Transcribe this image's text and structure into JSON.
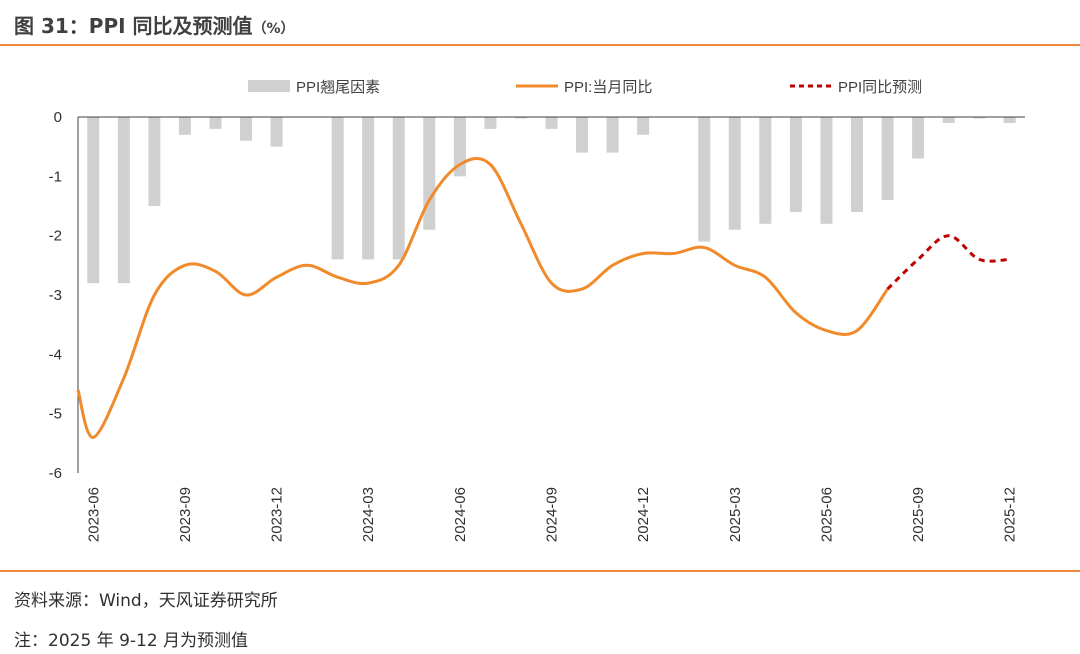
{
  "header": {
    "title": "图 31：PPI 同比及预测值",
    "unit": "（%）"
  },
  "footer": {
    "source": "资料来源：Wind，天风证券研究所",
    "note": "注：2025 年 9-12 月为预测值"
  },
  "colors": {
    "accent": "#f08a3c",
    "bar": "#d0d0d0",
    "line": "#f08a2a",
    "forecast": "#c00000"
  },
  "chart_data": {
    "type": "bar+line",
    "ylim": [
      -6,
      0
    ],
    "yticks": [
      "0",
      "-1",
      "-2",
      "-3",
      "-4",
      "-5",
      "-6"
    ],
    "months": [
      "2023-06",
      "2023-07",
      "2023-08",
      "2023-09",
      "2023-10",
      "2023-11",
      "2023-12",
      "2024-01",
      "2024-02",
      "2024-03",
      "2024-04",
      "2024-05",
      "2024-06",
      "2024-07",
      "2024-08",
      "2024-09",
      "2024-10",
      "2024-11",
      "2024-12",
      "2025-01",
      "2025-02",
      "2025-03",
      "2025-04",
      "2025-05",
      "2025-06",
      "2025-07",
      "2025-08",
      "2025-09",
      "2025-10",
      "2025-11",
      "2025-12"
    ],
    "xtick_labels": [
      "2023-06",
      "2023-09",
      "2023-12",
      "2024-03",
      "2024-06",
      "2024-09",
      "2024-12",
      "2025-03",
      "2025-06",
      "2025-09",
      "2025-12"
    ],
    "legend": {
      "bar": "PPI翘尾因素",
      "line": "PPI:当月同比",
      "forecast": "PPI同比预测"
    },
    "series": [
      {
        "name": "PPI翘尾因素",
        "type": "bar",
        "values": [
          -2.8,
          -2.8,
          -1.5,
          -0.3,
          -0.2,
          -0.4,
          -0.5,
          null,
          -2.4,
          -2.4,
          -2.4,
          -1.9,
          -1.0,
          -0.2,
          0.0,
          -0.2,
          -0.6,
          -0.6,
          -0.3,
          null,
          -2.1,
          -1.9,
          -1.8,
          -1.6,
          -1.8,
          -1.6,
          -1.4,
          -0.7,
          -0.1,
          0.0,
          -0.1
        ]
      },
      {
        "name": "PPI:当月同比",
        "type": "line",
        "x": [
          "2023-05",
          "2023-06",
          "2023-07",
          "2023-08",
          "2023-09",
          "2023-10",
          "2023-11",
          "2023-12",
          "2024-01",
          "2024-02",
          "2024-03",
          "2024-04",
          "2024-05",
          "2024-06",
          "2024-07",
          "2024-08",
          "2024-09",
          "2024-10",
          "2024-11",
          "2024-12",
          "2025-01",
          "2025-02",
          "2025-03",
          "2025-04",
          "2025-05",
          "2025-06",
          "2025-07",
          "2025-08"
        ],
        "values": [
          -4.6,
          -5.4,
          -4.4,
          -3.0,
          -2.5,
          -2.6,
          -3.0,
          -2.7,
          -2.5,
          -2.7,
          -2.8,
          -2.5,
          -1.4,
          -0.8,
          -0.8,
          -1.8,
          -2.8,
          -2.9,
          -2.5,
          -2.3,
          -2.3,
          -2.2,
          -2.5,
          -2.7,
          -3.3,
          -3.6,
          -3.6,
          -2.9
        ]
      },
      {
        "name": "PPI同比预测",
        "type": "line-dashed",
        "x": [
          "2025-08",
          "2025-09",
          "2025-10",
          "2025-11",
          "2025-12"
        ],
        "values": [
          -2.9,
          -2.4,
          -2.0,
          -2.4,
          -2.4
        ]
      }
    ]
  }
}
